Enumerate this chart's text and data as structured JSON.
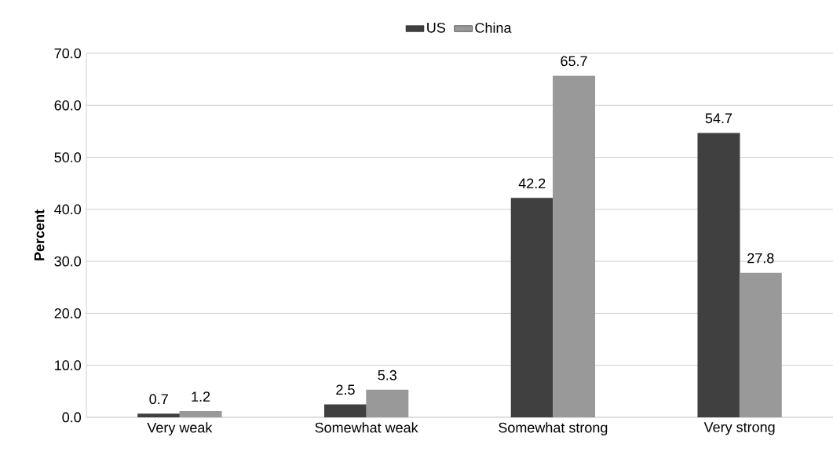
{
  "chart_data": {
    "type": "bar",
    "ylabel": "Percent",
    "categories": [
      "Very weak",
      "Somewhat weak",
      "Somewhat strong",
      "Very strong"
    ],
    "series": [
      {
        "name": "US",
        "color": "#404040",
        "values": [
          0.7,
          2.5,
          42.2,
          54.7
        ]
      },
      {
        "name": "China",
        "color": "#999999",
        "values": [
          1.2,
          5.3,
          65.7,
          27.8
        ]
      }
    ],
    "ylim": [
      0,
      70
    ],
    "yticks": [
      {
        "value": 0,
        "label": "0.0"
      },
      {
        "value": 10,
        "label": "10.0"
      },
      {
        "value": 20,
        "label": "20.0"
      },
      {
        "value": 30,
        "label": "30.0"
      },
      {
        "value": 40,
        "label": "40.0"
      },
      {
        "value": 50,
        "label": "50.0"
      },
      {
        "value": 60,
        "label": "60.0"
      },
      {
        "value": 70,
        "label": "70.0"
      }
    ],
    "grid": "y",
    "legend": "top",
    "data_labels": true
  }
}
